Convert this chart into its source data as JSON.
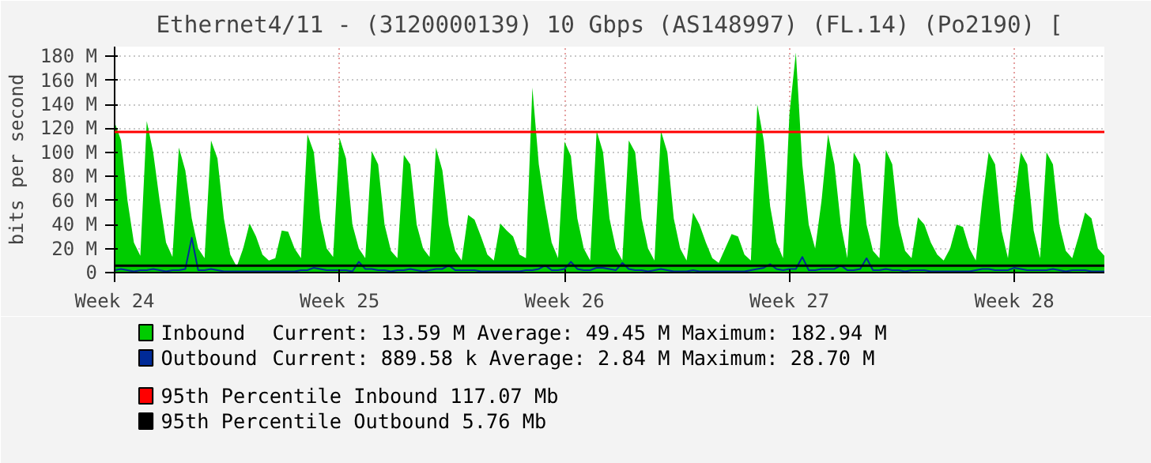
{
  "chart_data": {
    "type": "area",
    "title": "Ethernet4/11 - (3120000139) 10 Gbps (AS148997) (FL.14) (Po2190) [",
    "ylabel": "bits per second",
    "categories": [
      "Week 24",
      null,
      null,
      null,
      null,
      null,
      null,
      null,
      null,
      null,
      null,
      null,
      null,
      null,
      null,
      null,
      null,
      null,
      null,
      null,
      null,
      null,
      null,
      null,
      null,
      null,
      null,
      null,
      null,
      null,
      null,
      null,
      null,
      null,
      null,
      "Week 25",
      null,
      null,
      null,
      null,
      null,
      null,
      null,
      null,
      null,
      null,
      null,
      null,
      null,
      null,
      null,
      null,
      null,
      null,
      null,
      null,
      null,
      null,
      null,
      null,
      null,
      null,
      null,
      null,
      null,
      null,
      null,
      null,
      null,
      null,
      "Week 26",
      null,
      null,
      null,
      null,
      null,
      null,
      null,
      null,
      null,
      null,
      null,
      null,
      null,
      null,
      null,
      null,
      null,
      null,
      null,
      null,
      null,
      null,
      null,
      null,
      null,
      null,
      null,
      null,
      null,
      null,
      null,
      null,
      null,
      null,
      "Week 27",
      null,
      null,
      null,
      null,
      null,
      null,
      null,
      null,
      null,
      null,
      null,
      null,
      null,
      null,
      null,
      null,
      null,
      null,
      null,
      null,
      null,
      null,
      null,
      null,
      null,
      null,
      null,
      null,
      null,
      null,
      null,
      null,
      null,
      null,
      "Week 28",
      null,
      null,
      null,
      null,
      null,
      null,
      null,
      null,
      null,
      null,
      null,
      null,
      null,
      null
    ],
    "ylim": [
      0,
      188
    ],
    "yticks": [
      0,
      {
        "value": 20,
        "label": "20 M"
      },
      {
        "value": 40,
        "label": "40 M"
      },
      {
        "value": 60,
        "label": "60 M"
      },
      {
        "value": 80,
        "label": "80 M"
      },
      {
        "value": 100,
        "label": "100 M"
      },
      {
        "value": 120,
        "label": "120 M"
      },
      {
        "value": 140,
        "label": "140 M"
      },
      {
        "value": 160,
        "label": "160 M"
      },
      {
        "value": 180,
        "label": "180 M"
      }
    ],
    "grid": true,
    "legend": "bottom",
    "series": [
      {
        "name": "Inbound",
        "color": "#00cc00",
        "values": [
          125,
          110,
          60,
          25,
          14,
          126,
          100,
          60,
          25,
          13,
          104,
          85,
          45,
          20,
          12,
          110,
          95,
          45,
          15,
          5,
          20,
          41,
          30,
          15,
          10,
          12,
          35,
          34,
          20,
          12,
          115,
          100,
          45,
          20,
          13,
          112,
          95,
          40,
          20,
          12,
          101,
          90,
          40,
          18,
          12,
          98,
          90,
          40,
          20,
          13,
          104,
          85,
          40,
          18,
          10,
          48,
          44,
          30,
          15,
          10,
          41,
          35,
          30,
          15,
          12,
          154,
          90,
          55,
          25,
          12,
          109,
          97,
          45,
          20,
          10,
          118,
          100,
          45,
          20,
          10,
          110,
          100,
          45,
          20,
          10,
          118,
          100,
          45,
          20,
          10,
          50,
          40,
          25,
          12,
          8,
          20,
          32,
          30,
          15,
          10,
          140,
          110,
          55,
          25,
          12,
          132,
          183,
          90,
          40,
          20,
          60,
          115,
          90,
          40,
          12,
          100,
          90,
          40,
          18,
          12,
          102,
          90,
          40,
          18,
          12,
          46,
          40,
          25,
          15,
          10,
          20,
          40,
          38,
          20,
          10,
          60,
          100,
          90,
          35,
          12,
          60,
          100,
          90,
          35,
          12,
          100,
          90,
          40,
          18,
          12,
          30,
          50,
          45,
          20,
          14
        ]
      },
      {
        "name": "Outbound",
        "type": "line",
        "color": "#002a97",
        "values": [
          2,
          3,
          2,
          1,
          2,
          2,
          3,
          2,
          1,
          2,
          2,
          3,
          29,
          2,
          2,
          3,
          2,
          1,
          1,
          1,
          1,
          1,
          1,
          1,
          1,
          1,
          1,
          1,
          1,
          2,
          2,
          4,
          3,
          2,
          2,
          2,
          2,
          1,
          9,
          3,
          3,
          2,
          2,
          1,
          2,
          2,
          3,
          2,
          1,
          2,
          3,
          3,
          6,
          2,
          2,
          2,
          2,
          1,
          1,
          1,
          1,
          1,
          1,
          1,
          2,
          2,
          3,
          6,
          2,
          2,
          3,
          9,
          3,
          2,
          2,
          4,
          4,
          3,
          2,
          8,
          3,
          2,
          2,
          1,
          2,
          3,
          2,
          1,
          1,
          1,
          2,
          1,
          1,
          1,
          1,
          1,
          1,
          1,
          1,
          2,
          3,
          4,
          7,
          3,
          2,
          3,
          3,
          13,
          2,
          2,
          3,
          3,
          3,
          6,
          2,
          2,
          3,
          12,
          2,
          2,
          3,
          2,
          2,
          1,
          2,
          2,
          2,
          1,
          1,
          1,
          1,
          1,
          1,
          1,
          2,
          3,
          3,
          2,
          2,
          2,
          4,
          3,
          2,
          2,
          2,
          2,
          3,
          2,
          1,
          2,
          2,
          2,
          1,
          1,
          1
        ]
      }
    ],
    "annotations": [
      "Current:   13.59 M   Average:   49.45 M   Maximum:  182.94 M",
      "Current:  889.58 k   Average:    2.84 M   Maximum:   28.70 M"
    ],
    "ref_lines": [
      {
        "axis": "y",
        "value": 117.07,
        "label": "95th Percentile Inbound  117.07 Mb",
        "color": "#ff0000"
      },
      {
        "axis": "y",
        "value": 5.76,
        "label": "95th Percentile Outbound  5.76 Mb",
        "color": "#000000"
      }
    ]
  }
}
